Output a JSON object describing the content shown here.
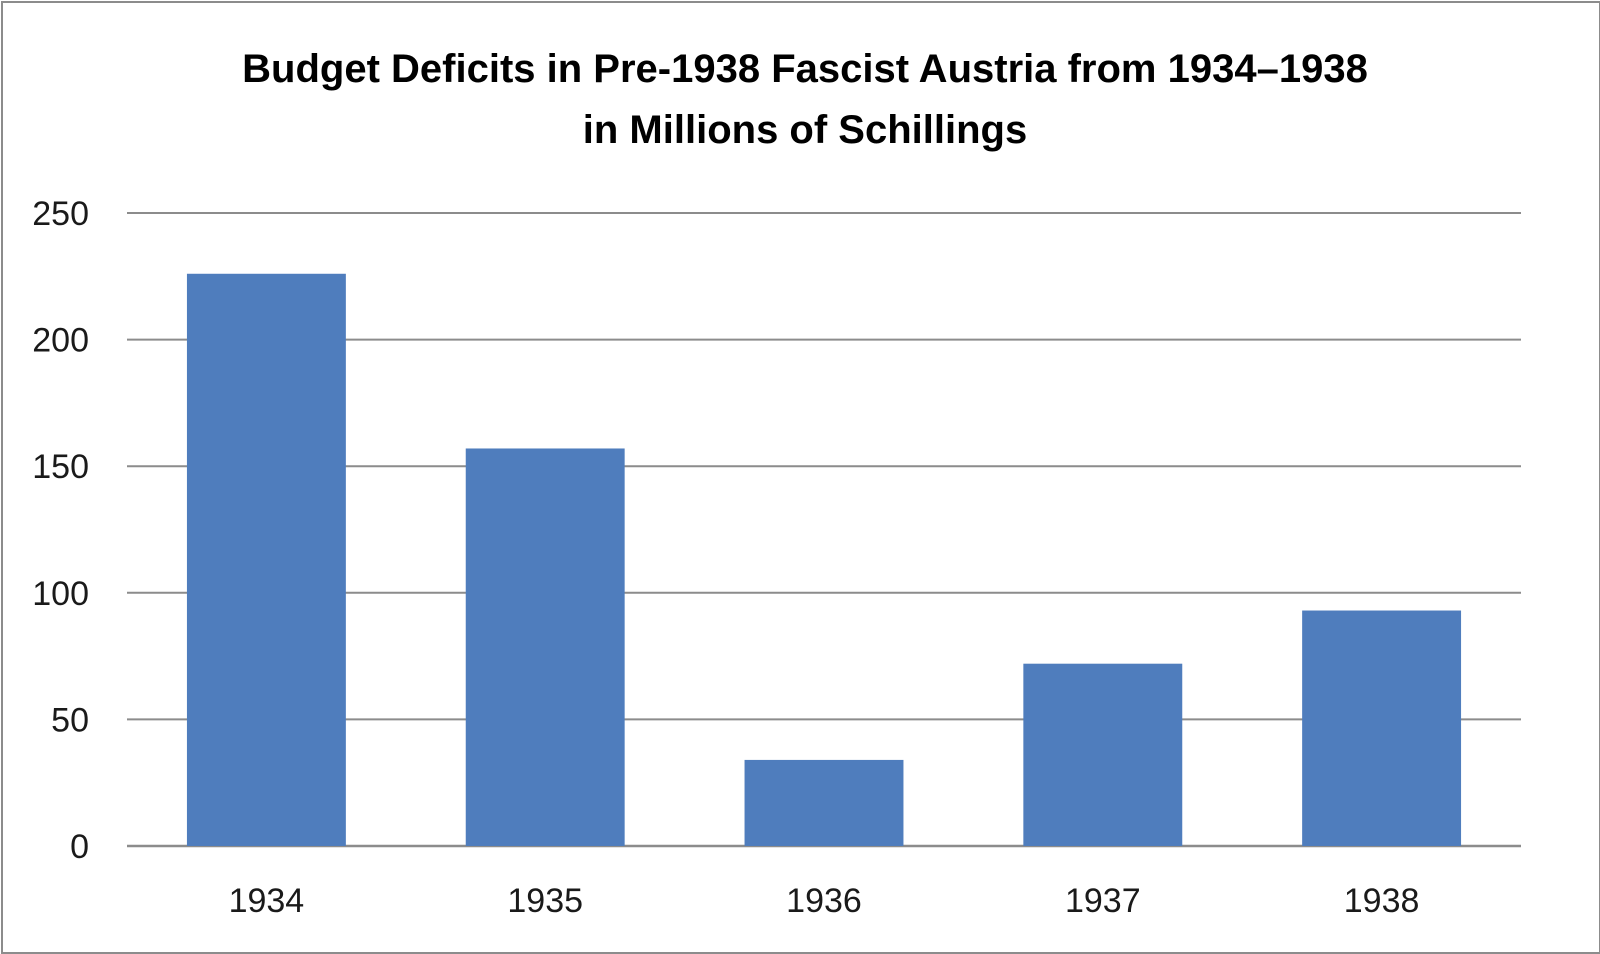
{
  "chart_data": {
    "type": "bar",
    "title_lines": [
      "Budget Deficits in Pre-1938 Fascist Austria from 1934–1938",
      "in Millions of Schillings"
    ],
    "categories": [
      "1934",
      "1935",
      "1936",
      "1937",
      "1938"
    ],
    "values": [
      226,
      157,
      34,
      72,
      93
    ],
    "xlabel": "",
    "ylabel": "",
    "ylim": [
      0,
      250
    ],
    "yticks": [
      0,
      50,
      100,
      150,
      200,
      250
    ],
    "grid": true,
    "legend": "none",
    "colors": {
      "bar": "#4f7dbd",
      "grid": "#8c8c8c",
      "frame": "#8c8c8c"
    }
  }
}
